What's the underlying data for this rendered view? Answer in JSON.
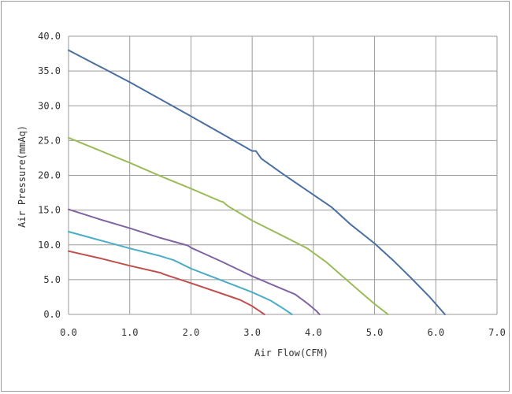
{
  "chart_data": {
    "type": "line",
    "title": "",
    "xlabel": "Air Flow(CFM)",
    "ylabel": "Air Pressure(mmAq)",
    "xlim": [
      0,
      7
    ],
    "ylim": [
      0,
      40
    ],
    "x_ticks": [
      "0.0",
      "1.0",
      "2.0",
      "3.0",
      "4.0",
      "5.0",
      "6.0",
      "7.0"
    ],
    "y_ticks": [
      "0.0",
      "5.0",
      "10.0",
      "15.0",
      "20.0",
      "25.0",
      "30.0",
      "35.0",
      "40.0"
    ],
    "grid": true,
    "series": [
      {
        "color": "#4a6fa0",
        "points": [
          [
            0,
            38.0
          ],
          [
            1.0,
            33.4
          ],
          [
            2.0,
            28.5
          ],
          [
            2.5,
            26.0
          ],
          [
            3.0,
            23.5
          ],
          [
            3.06,
            23.5
          ],
          [
            3.15,
            22.4
          ],
          [
            3.5,
            20.2
          ],
          [
            4.0,
            17.2
          ],
          [
            4.3,
            15.4
          ],
          [
            4.6,
            13.0
          ],
          [
            5.0,
            10.2
          ],
          [
            5.3,
            7.8
          ],
          [
            5.6,
            5.2
          ],
          [
            5.9,
            2.5
          ],
          [
            6.15,
            0
          ]
        ]
      },
      {
        "color": "#9bbb59",
        "points": [
          [
            0,
            25.4
          ],
          [
            0.5,
            23.6
          ],
          [
            1.0,
            21.8
          ],
          [
            1.5,
            19.9
          ],
          [
            2.0,
            18.1
          ],
          [
            2.5,
            16.2
          ],
          [
            2.52,
            16.2
          ],
          [
            2.6,
            15.6
          ],
          [
            3.0,
            13.5
          ],
          [
            3.5,
            11.3
          ],
          [
            3.9,
            9.5
          ],
          [
            4.2,
            7.6
          ],
          [
            4.5,
            5.3
          ],
          [
            4.8,
            3.0
          ],
          [
            5.0,
            1.5
          ],
          [
            5.22,
            0
          ]
        ]
      },
      {
        "color": "#8064a2",
        "points": [
          [
            0,
            15.1
          ],
          [
            0.5,
            13.7
          ],
          [
            1.0,
            12.4
          ],
          [
            1.5,
            11.0
          ],
          [
            1.95,
            9.9
          ],
          [
            2.0,
            9.6
          ],
          [
            2.5,
            7.6
          ],
          [
            3.0,
            5.5
          ],
          [
            3.4,
            4.0
          ],
          [
            3.7,
            2.9
          ],
          [
            3.9,
            1.6
          ],
          [
            4.05,
            0.5
          ],
          [
            4.1,
            0
          ]
        ]
      },
      {
        "color": "#4bacc6",
        "points": [
          [
            0,
            11.9
          ],
          [
            0.5,
            10.7
          ],
          [
            1.0,
            9.5
          ],
          [
            1.5,
            8.4
          ],
          [
            1.72,
            7.8
          ],
          [
            2.0,
            6.6
          ],
          [
            2.5,
            4.9
          ],
          [
            3.0,
            3.2
          ],
          [
            3.3,
            2.0
          ],
          [
            3.5,
            0.9
          ],
          [
            3.65,
            0
          ]
        ]
      },
      {
        "color": "#c0504d",
        "points": [
          [
            0,
            9.1
          ],
          [
            0.5,
            8.1
          ],
          [
            1.0,
            7.0
          ],
          [
            1.5,
            6.0
          ],
          [
            1.55,
            5.8
          ],
          [
            2.0,
            4.5
          ],
          [
            2.5,
            3.0
          ],
          [
            2.8,
            2.1
          ],
          [
            3.0,
            1.2
          ],
          [
            3.1,
            0.6
          ],
          [
            3.2,
            0
          ]
        ]
      }
    ]
  }
}
